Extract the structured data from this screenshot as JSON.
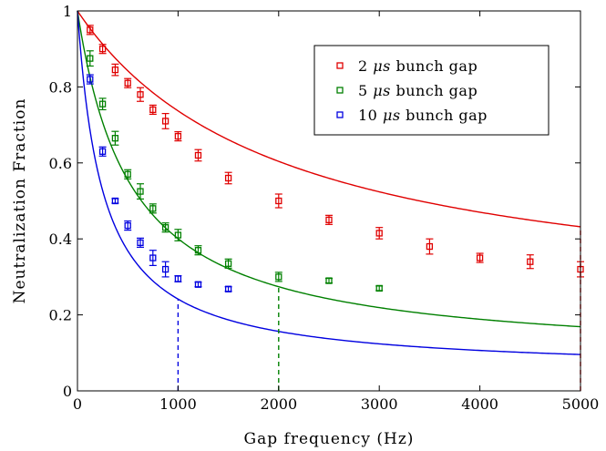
{
  "chart_data": {
    "type": "scatter",
    "xlabel": "Gap frequency (Hz)",
    "ylabel": "Neutralization Fraction",
    "xlim": [
      0,
      5000
    ],
    "ylim": [
      0,
      1
    ],
    "xticks": [
      0,
      1000,
      2000,
      3000,
      4000,
      5000
    ],
    "yticks": [
      0,
      0.2,
      0.4,
      0.6,
      0.8,
      1
    ],
    "xtick_labels": [
      "0",
      "1000",
      "2000",
      "3000",
      "4000",
      "5000"
    ],
    "ytick_labels": [
      "0",
      "0.2",
      "0.4",
      "0.6",
      "0.8",
      "1"
    ],
    "legend_position": "top-right",
    "series": [
      {
        "name": "2 μs bunch gap",
        "name_value": "2",
        "name_unit": "μs",
        "name_suffix": "bunch gap",
        "color": "#e00000",
        "x": [
          125,
          250,
          375,
          500,
          625,
          750,
          875,
          1000,
          1200,
          1500,
          2000,
          2500,
          3000,
          3500,
          4000,
          4500,
          5000
        ],
        "y": [
          0.95,
          0.9,
          0.845,
          0.81,
          0.78,
          0.74,
          0.71,
          0.67,
          0.62,
          0.56,
          0.5,
          0.45,
          0.415,
          0.38,
          0.35,
          0.34,
          0.32
        ],
        "err": [
          0.012,
          0.012,
          0.015,
          0.012,
          0.018,
          0.012,
          0.02,
          0.012,
          0.015,
          0.015,
          0.018,
          0.012,
          0.015,
          0.02,
          0.012,
          0.018,
          0.02
        ],
        "fit_a": 0.00049,
        "fit_b": 0.2,
        "cutoff": 5000
      },
      {
        "name": "5 μs bunch gap",
        "name_value": "5",
        "name_unit": "μs",
        "name_suffix": "bunch gap",
        "color": "#008000",
        "x": [
          125,
          250,
          375,
          500,
          625,
          750,
          875,
          1000,
          1200,
          1500,
          2000,
          2500,
          3000
        ],
        "y": [
          0.875,
          0.755,
          0.665,
          0.57,
          0.525,
          0.48,
          0.43,
          0.41,
          0.37,
          0.335,
          0.3,
          0.29,
          0.27
        ],
        "err": [
          0.02,
          0.015,
          0.018,
          0.012,
          0.02,
          0.012,
          0.012,
          0.015,
          0.012,
          0.012,
          0.012,
          0.006,
          0.006
        ],
        "fit_a": 0.00187,
        "fit_b": 0.08,
        "cutoff": 2000
      },
      {
        "name": "10 μs bunch gap",
        "name_value": "10",
        "name_unit": "μs",
        "name_suffix": "bunch gap",
        "color": "#0000e0",
        "x": [
          125,
          250,
          375,
          500,
          625,
          750,
          875,
          1000,
          1200,
          1500
        ],
        "y": [
          0.82,
          0.63,
          0.5,
          0.435,
          0.39,
          0.35,
          0.32,
          0.295,
          0.28,
          0.268
        ],
        "err": [
          0.012,
          0.012,
          0.006,
          0.012,
          0.012,
          0.02,
          0.02,
          0.008,
          0.006,
          0.006
        ],
        "fit_a": 0.00396,
        "fit_b": 0.05,
        "cutoff": 1000
      }
    ]
  }
}
